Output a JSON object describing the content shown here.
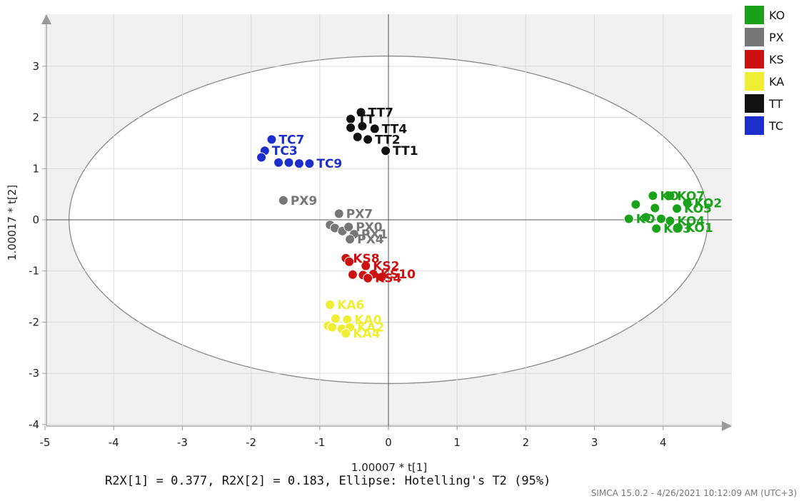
{
  "chart_data": {
    "type": "scatter",
    "xlabel": "1.00007 * t[1]",
    "ylabel": "1.00017 * t[2]",
    "xlim": [
      -5,
      5
    ],
    "ylim": [
      -4,
      4
    ],
    "xticks": [
      -5,
      -4,
      -3,
      -2,
      -1,
      0,
      1,
      2,
      3,
      4
    ],
    "yticks": [
      -4,
      -3,
      -2,
      -1,
      0,
      1,
      2,
      3
    ],
    "grid": true,
    "legend_position": "right",
    "ellipse": {
      "cx": 0,
      "cy": 0,
      "rx": 4.65,
      "ry": 3.2
    },
    "series": [
      {
        "name": "KO",
        "color": "#1aa31a",
        "points": [
          {
            "x": 3.85,
            "y": 0.47,
            "label": "KO"
          },
          {
            "x": 4.1,
            "y": 0.47,
            "label": "KO7"
          },
          {
            "x": 4.35,
            "y": 0.33,
            "label": "KO2"
          },
          {
            "x": 3.6,
            "y": 0.3,
            "label": ""
          },
          {
            "x": 3.88,
            "y": 0.23,
            "label": ""
          },
          {
            "x": 4.2,
            "y": 0.22,
            "label": "KO5"
          },
          {
            "x": 3.5,
            "y": 0.02,
            "label": "KO"
          },
          {
            "x": 3.75,
            "y": 0.05,
            "label": ""
          },
          {
            "x": 3.97,
            "y": 0.02,
            "label": ""
          },
          {
            "x": 4.1,
            "y": -0.02,
            "label": "KO4"
          },
          {
            "x": 3.9,
            "y": -0.17,
            "label": "KO3"
          },
          {
            "x": 4.22,
            "y": -0.15,
            "label": "KO1"
          }
        ]
      },
      {
        "name": "PX",
        "color": "#777777",
        "points": [
          {
            "x": -1.53,
            "y": 0.38,
            "label": "PX9"
          },
          {
            "x": -0.72,
            "y": 0.12,
            "label": "PX7"
          },
          {
            "x": -0.85,
            "y": -0.1,
            "label": ""
          },
          {
            "x": -0.78,
            "y": -0.16,
            "label": ""
          },
          {
            "x": -0.67,
            "y": -0.22,
            "label": ""
          },
          {
            "x": -0.58,
            "y": -0.14,
            "label": "PX0"
          },
          {
            "x": -0.5,
            "y": -0.28,
            "label": "PX1"
          },
          {
            "x": -0.56,
            "y": -0.38,
            "label": "PX4"
          }
        ]
      },
      {
        "name": "KS",
        "color": "#cc1111",
        "points": [
          {
            "x": -0.62,
            "y": -0.75,
            "label": "KS8"
          },
          {
            "x": -0.57,
            "y": -0.82,
            "label": ""
          },
          {
            "x": -0.33,
            "y": -0.9,
            "label": "KS2"
          },
          {
            "x": -0.52,
            "y": -1.07,
            "label": ""
          },
          {
            "x": -0.37,
            "y": -1.08,
            "label": ""
          },
          {
            "x": -0.22,
            "y": -1.06,
            "label": "KS10"
          },
          {
            "x": -0.1,
            "y": -1.12,
            "label": ""
          },
          {
            "x": -0.3,
            "y": -1.14,
            "label": "KS4"
          }
        ]
      },
      {
        "name": "KA",
        "color": "#eeee33",
        "points": [
          {
            "x": -0.85,
            "y": -1.66,
            "label": "KA6"
          },
          {
            "x": -0.77,
            "y": -1.93,
            "label": ""
          },
          {
            "x": -0.6,
            "y": -1.95,
            "label": "KA0"
          },
          {
            "x": -0.88,
            "y": -2.07,
            "label": ""
          },
          {
            "x": -0.82,
            "y": -2.1,
            "label": ""
          },
          {
            "x": -0.68,
            "y": -2.13,
            "label": ""
          },
          {
            "x": -0.56,
            "y": -2.1,
            "label": "KA2"
          },
          {
            "x": -0.62,
            "y": -2.22,
            "label": "KA4"
          }
        ]
      },
      {
        "name": "TT",
        "color": "#111111",
        "points": [
          {
            "x": -0.4,
            "y": 2.1,
            "label": "TT7"
          },
          {
            "x": -0.55,
            "y": 1.97,
            "label": "TT"
          },
          {
            "x": -0.55,
            "y": 1.8,
            "label": ""
          },
          {
            "x": -0.38,
            "y": 1.83,
            "label": ""
          },
          {
            "x": -0.2,
            "y": 1.78,
            "label": "TT4"
          },
          {
            "x": -0.45,
            "y": 1.62,
            "label": ""
          },
          {
            "x": -0.3,
            "y": 1.57,
            "label": "TT2"
          },
          {
            "x": -0.04,
            "y": 1.35,
            "label": "TT1"
          }
        ]
      },
      {
        "name": "TC",
        "color": "#1c2ecc",
        "points": [
          {
            "x": -1.7,
            "y": 1.57,
            "label": "TC7"
          },
          {
            "x": -1.8,
            "y": 1.35,
            "label": "TC3"
          },
          {
            "x": -1.85,
            "y": 1.22,
            "label": ""
          },
          {
            "x": -1.6,
            "y": 1.12,
            "label": ""
          },
          {
            "x": -1.45,
            "y": 1.12,
            "label": ""
          },
          {
            "x": -1.3,
            "y": 1.1,
            "label": ""
          },
          {
            "x": -1.15,
            "y": 1.1,
            "label": "TC9"
          }
        ]
      }
    ]
  },
  "footer": "R2X[1] = 0.377, R2X[2] = 0.183, Ellipse: Hotelling's T2 (95%)",
  "stamp": "SIMCA 15.0.2 - 4/26/2021 10:12:09 AM (UTC+3)"
}
